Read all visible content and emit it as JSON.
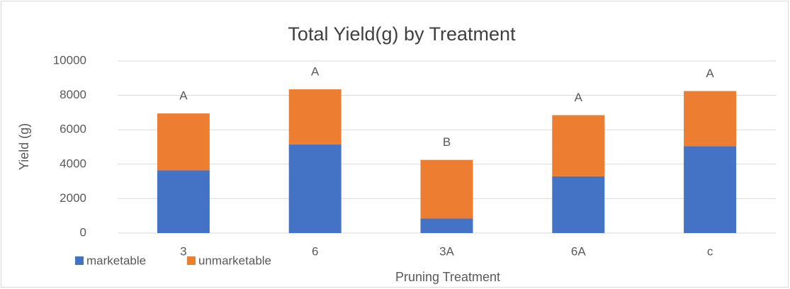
{
  "chart_data": {
    "type": "stacked-bar",
    "title": "Total Yield(g) by Treatment",
    "x_label": "Pruning Treatment",
    "y_label": "Yield (g)",
    "categories": [
      "3",
      "6",
      "3A",
      "6A",
      "c"
    ],
    "series": [
      {
        "name": "marketable",
        "color": "#4472c4",
        "values": [
          3650,
          5150,
          850,
          3300,
          5050
        ]
      },
      {
        "name": "unmarketable",
        "color": "#ed7d31",
        "values": [
          3300,
          3200,
          3400,
          3550,
          3200
        ]
      }
    ],
    "annotations": [
      "A",
      "A",
      "B",
      "A",
      "A"
    ],
    "ylim": [
      0,
      10000
    ],
    "yticks": [
      0,
      2000,
      4000,
      6000,
      8000,
      10000
    ],
    "grid": true,
    "legend": "bottom-left"
  }
}
